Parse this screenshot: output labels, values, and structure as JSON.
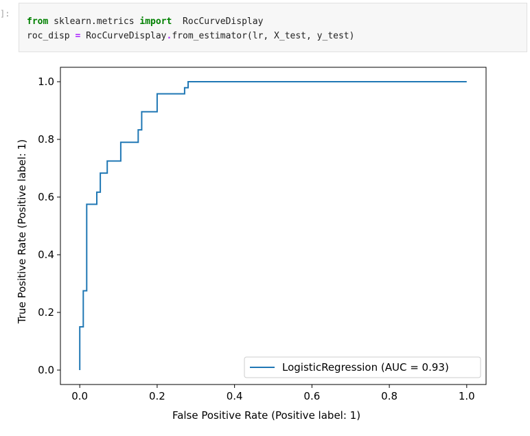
{
  "cell": {
    "prompt": "]:",
    "line1": {
      "kw_from": "from",
      "module": " sklearn.metrics ",
      "kw_import": "import",
      "name": "  RocCurveDisplay"
    },
    "line2": {
      "lhs": "roc_disp ",
      "eq": "=",
      "call_obj": " RocCurveDisplay",
      "dot": ".",
      "call_rest": "from_estimator(lr, X_test, y_test)"
    }
  },
  "colors": {
    "line": "#1f77b4",
    "keyword": "#008000",
    "operator": "#aa22ff"
  },
  "chart_data": {
    "type": "line",
    "title": "",
    "xlabel": "False Positive Rate (Positive label: 1)",
    "ylabel": "True Positive Rate (Positive label: 1)",
    "xlim": [
      -0.05,
      1.05
    ],
    "ylim": [
      -0.05,
      1.05
    ],
    "xticks": [
      0.0,
      0.2,
      0.4,
      0.6,
      0.8,
      1.0
    ],
    "xtick_labels": [
      "0.0",
      "0.2",
      "0.4",
      "0.6",
      "0.8",
      "1.0"
    ],
    "yticks": [
      0.0,
      0.2,
      0.4,
      0.6,
      0.8,
      1.0
    ],
    "ytick_labels": [
      "0.0",
      "0.2",
      "0.4",
      "0.6",
      "0.8",
      "1.0"
    ],
    "grid": false,
    "legend_position": "lower-right",
    "series": [
      {
        "name": "LogisticRegression (AUC = 0.93)",
        "x": [
          0.0,
          0.0,
          0.009,
          0.009,
          0.018,
          0.018,
          0.026,
          0.026,
          0.044,
          0.044,
          0.053,
          0.053,
          0.062,
          0.062,
          0.071,
          0.071,
          0.106,
          0.106,
          0.151,
          0.151,
          0.16,
          0.16,
          0.2,
          0.2,
          0.271,
          0.271,
          0.28,
          0.28,
          1.0
        ],
        "y": [
          0.0,
          0.15,
          0.15,
          0.275,
          0.275,
          0.575,
          0.575,
          0.575,
          0.575,
          0.617,
          0.617,
          0.683,
          0.683,
          0.683,
          0.683,
          0.725,
          0.725,
          0.79,
          0.79,
          0.833,
          0.833,
          0.896,
          0.896,
          0.958,
          0.958,
          0.979,
          0.979,
          1.0,
          1.0
        ]
      }
    ]
  }
}
